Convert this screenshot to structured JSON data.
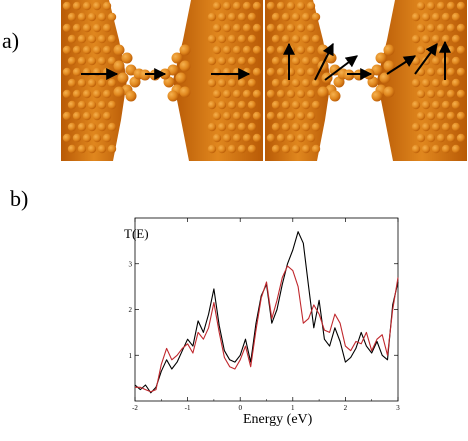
{
  "figure": {
    "panel_a_label": "a)",
    "panel_b_label": "b)"
  },
  "colors": {
    "metal_dark": "#b85a06",
    "metal_mid": "#e0871e",
    "metal_light": "#f6b24f",
    "arrow": "#000000",
    "series_black": "#000000",
    "series_red": "#c0282d"
  },
  "renders": [
    {
      "name": "collinear-spins",
      "arrow_style": "horizontal-collinear"
    },
    {
      "name": "non-collinear-spins",
      "arrow_style": "rotated-non-collinear"
    }
  ],
  "chart_data": {
    "type": "line",
    "ylabel": "T(E)",
    "xlabel": "Energy (eV)",
    "xlim": [
      -2,
      3
    ],
    "ylim": [
      0,
      4
    ],
    "xticks": [
      "-2",
      "-1",
      "0",
      "1",
      "2",
      "3"
    ],
    "yticks": [
      "1",
      "2",
      "3"
    ],
    "series": [
      {
        "color": "#000000",
        "points": [
          [
            -2.0,
            0.35
          ],
          [
            -1.9,
            0.25
          ],
          [
            -1.8,
            0.35
          ],
          [
            -1.7,
            0.18
          ],
          [
            -1.6,
            0.3
          ],
          [
            -1.5,
            0.65
          ],
          [
            -1.4,
            0.9
          ],
          [
            -1.3,
            0.7
          ],
          [
            -1.2,
            0.85
          ],
          [
            -1.1,
            1.1
          ],
          [
            -1.0,
            1.35
          ],
          [
            -0.9,
            1.2
          ],
          [
            -0.8,
            1.75
          ],
          [
            -0.7,
            1.5
          ],
          [
            -0.6,
            1.9
          ],
          [
            -0.5,
            2.45
          ],
          [
            -0.4,
            1.65
          ],
          [
            -0.3,
            1.1
          ],
          [
            -0.2,
            0.9
          ],
          [
            -0.1,
            0.85
          ],
          [
            0.0,
            1.0
          ],
          [
            0.1,
            1.35
          ],
          [
            0.2,
            0.85
          ],
          [
            0.3,
            1.7
          ],
          [
            0.4,
            2.3
          ],
          [
            0.5,
            2.55
          ],
          [
            0.6,
            1.7
          ],
          [
            0.7,
            2.0
          ],
          [
            0.8,
            2.55
          ],
          [
            0.9,
            3.0
          ],
          [
            1.0,
            3.3
          ],
          [
            1.1,
            3.7
          ],
          [
            1.2,
            3.45
          ],
          [
            1.3,
            2.5
          ],
          [
            1.4,
            1.6
          ],
          [
            1.5,
            2.2
          ],
          [
            1.6,
            1.35
          ],
          [
            1.7,
            1.2
          ],
          [
            1.8,
            1.6
          ],
          [
            1.9,
            1.3
          ],
          [
            2.0,
            0.85
          ],
          [
            2.1,
            0.95
          ],
          [
            2.2,
            1.15
          ],
          [
            2.3,
            1.5
          ],
          [
            2.4,
            1.2
          ],
          [
            2.5,
            1.05
          ],
          [
            2.6,
            1.3
          ],
          [
            2.7,
            1.0
          ],
          [
            2.8,
            0.9
          ],
          [
            2.9,
            2.1
          ],
          [
            3.0,
            2.6
          ]
        ]
      },
      {
        "color": "#c0282d",
        "points": [
          [
            -2.0,
            0.3
          ],
          [
            -1.9,
            0.3
          ],
          [
            -1.8,
            0.25
          ],
          [
            -1.7,
            0.2
          ],
          [
            -1.6,
            0.25
          ],
          [
            -1.5,
            0.8
          ],
          [
            -1.4,
            1.15
          ],
          [
            -1.3,
            0.9
          ],
          [
            -1.2,
            1.0
          ],
          [
            -1.1,
            1.15
          ],
          [
            -1.0,
            1.25
          ],
          [
            -0.9,
            1.05
          ],
          [
            -0.8,
            1.5
          ],
          [
            -0.7,
            1.35
          ],
          [
            -0.6,
            1.6
          ],
          [
            -0.5,
            2.15
          ],
          [
            -0.4,
            1.5
          ],
          [
            -0.3,
            0.95
          ],
          [
            -0.2,
            0.75
          ],
          [
            -0.1,
            0.7
          ],
          [
            0.0,
            0.9
          ],
          [
            0.1,
            1.2
          ],
          [
            0.2,
            0.75
          ],
          [
            0.3,
            1.55
          ],
          [
            0.4,
            2.25
          ],
          [
            0.5,
            2.6
          ],
          [
            0.6,
            1.8
          ],
          [
            0.7,
            2.2
          ],
          [
            0.8,
            2.7
          ],
          [
            0.9,
            2.95
          ],
          [
            1.0,
            2.85
          ],
          [
            1.1,
            2.5
          ],
          [
            1.2,
            1.7
          ],
          [
            1.3,
            1.8
          ],
          [
            1.4,
            2.1
          ],
          [
            1.5,
            1.9
          ],
          [
            1.6,
            1.55
          ],
          [
            1.7,
            1.5
          ],
          [
            1.8,
            1.9
          ],
          [
            1.9,
            1.7
          ],
          [
            2.0,
            1.2
          ],
          [
            2.1,
            1.1
          ],
          [
            2.2,
            1.3
          ],
          [
            2.3,
            1.25
          ],
          [
            2.4,
            1.5
          ],
          [
            2.5,
            1.1
          ],
          [
            2.6,
            1.35
          ],
          [
            2.7,
            1.45
          ],
          [
            2.8,
            1.0
          ],
          [
            2.9,
            2.0
          ],
          [
            3.0,
            2.7
          ]
        ]
      }
    ]
  }
}
